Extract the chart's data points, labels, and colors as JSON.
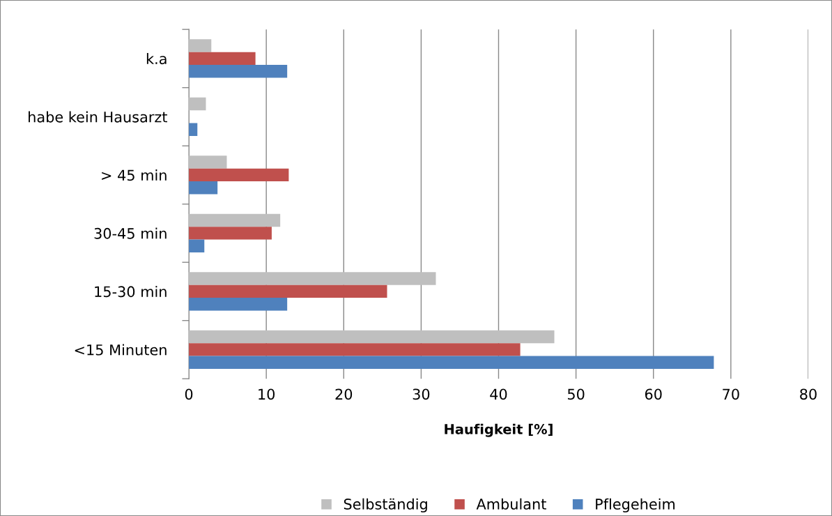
{
  "chart_data": {
    "type": "bar",
    "orientation": "horizontal",
    "xlabel": "Haufigkeit [%]",
    "categories": [
      "k.a",
      "habe kein Hausarzt",
      "> 45 min",
      "30-45 min",
      "15-30 min",
      "<15 Minuten"
    ],
    "series": [
      {
        "name": "Selbständig",
        "color": "#bfbfbf",
        "values": [
          2.9,
          2.2,
          4.9,
          11.8,
          31.9,
          47.2
        ]
      },
      {
        "name": "Ambulant",
        "color": "#c0504d",
        "values": [
          8.6,
          null,
          12.9,
          10.7,
          25.6,
          42.8
        ]
      },
      {
        "name": "Pflegeheim",
        "color": "#4f81bd",
        "values": [
          12.7,
          1.1,
          3.7,
          2.0,
          12.7,
          67.8
        ]
      }
    ],
    "xlim": [
      0,
      80
    ],
    "xticks": [
      0,
      10,
      20,
      30,
      40,
      50,
      60,
      70,
      80
    ],
    "grid": "x",
    "legend": "bottom"
  }
}
